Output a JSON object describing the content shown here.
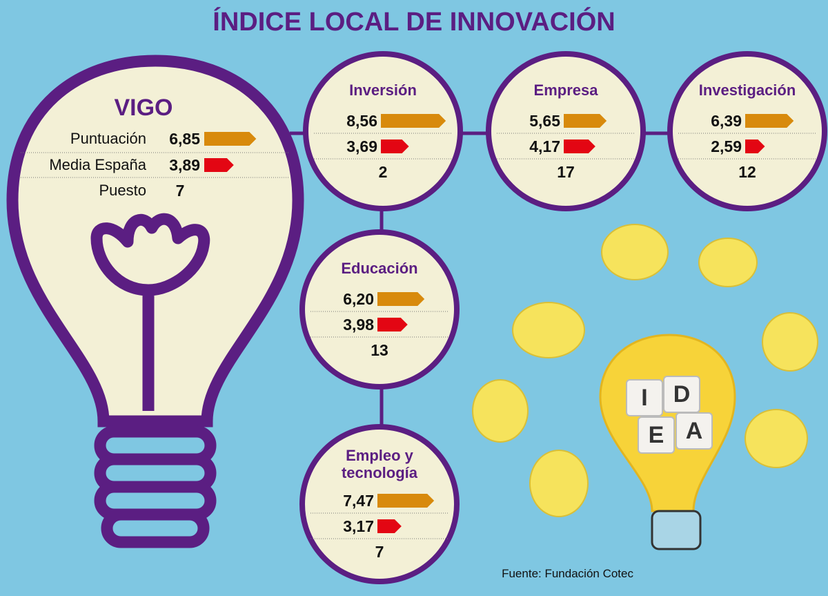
{
  "title": "ÍNDICE LOCAL DE INNOVACIÓN",
  "main": {
    "name": "VIGO",
    "rows": [
      {
        "label": "Puntuación",
        "value": 6.85,
        "value_label": "6,85"
      },
      {
        "label": "Media España",
        "value": 3.89,
        "value_label": "3,89"
      }
    ],
    "rank_label": "Puesto",
    "rank": 7
  },
  "circles": [
    {
      "name": "Inversión",
      "score": 8.56,
      "score_label": "8,56",
      "average": 3.69,
      "average_label": "3,69",
      "rank": 2
    },
    {
      "name": "Empresa",
      "score": 5.65,
      "score_label": "5,65",
      "average": 4.17,
      "average_label": "4,17",
      "rank": 17
    },
    {
      "name": "Investigación",
      "score": 6.39,
      "score_label": "6,39",
      "average": 2.59,
      "average_label": "2,59",
      "rank": 12
    },
    {
      "name": "Educación",
      "score": 6.2,
      "score_label": "6,20",
      "average": 3.98,
      "average_label": "3,98",
      "rank": 13
    },
    {
      "name": "Empleo y tecnología",
      "score": 7.47,
      "score_label": "7,47",
      "average": 3.17,
      "average_label": "3,17",
      "rank": 7
    }
  ],
  "cubes": [
    "I",
    "D",
    "E",
    "A"
  ],
  "source": "Fuente: Fundación Cotec"
}
